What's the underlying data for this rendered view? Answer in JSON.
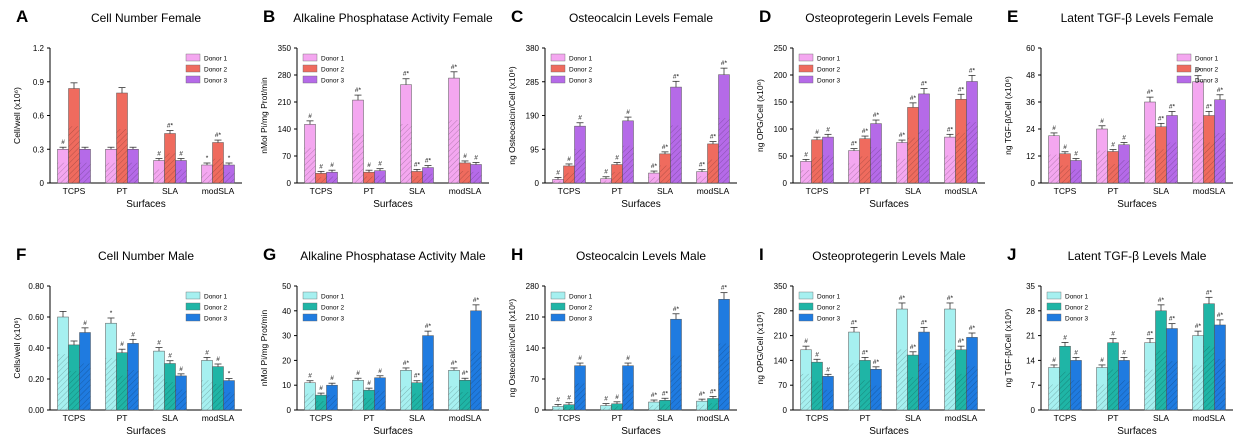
{
  "figure": {
    "panels": [
      {
        "letter": "A",
        "title": "Cell Number Female",
        "ylabel": "Cell/well (x10⁶)",
        "xlabel": "Surfaces",
        "legend": [
          "Donor 1",
          "Donor 2",
          "Donor 3"
        ],
        "colors": [
          "#f4a7f0",
          "#ef6b5e",
          "#b56ae8"
        ]
      },
      {
        "letter": "B",
        "title": "Alkaline Phosphatase Activity Female",
        "ylabel": "nMol Pi/mg Prot/min",
        "xlabel": "Surfaces",
        "legend": [
          "Donor 1",
          "Donor 2",
          "Donor 3"
        ],
        "colors": [
          "#f4a7f0",
          "#ef6b5e",
          "#b56ae8"
        ]
      },
      {
        "letter": "C",
        "title": "Osteocalcin Levels Female",
        "ylabel": "ng Osteocalcin/Cell (x10⁶)",
        "xlabel": "Surfaces",
        "legend": [
          "Donor 1",
          "Donor 2",
          "Donor 3"
        ],
        "colors": [
          "#f4a7f0",
          "#ef6b5e",
          "#b56ae8"
        ]
      },
      {
        "letter": "D",
        "title": "Osteoprotegerin Levels Female",
        "ylabel": "ng OPG/Cell (x10⁶)",
        "xlabel": "Surfaces",
        "legend": [
          "Donor 1",
          "Donor 2",
          "Donor 3"
        ],
        "colors": [
          "#f4a7f0",
          "#ef6b5e",
          "#b56ae8"
        ]
      },
      {
        "letter": "E",
        "title": "Latent TGF-β Levels Female",
        "ylabel": "ng TGF-β/Cell (x10⁶)",
        "xlabel": "Surfaces",
        "legend": [
          "Donor 1",
          "Donor 2",
          "Donor 3"
        ],
        "colors": [
          "#f4a7f0",
          "#ef6b5e",
          "#b56ae8"
        ]
      },
      {
        "letter": "F",
        "title": "Cell Number Male",
        "ylabel": "Cells/well (x10⁶)",
        "xlabel": "Surfaces",
        "legend": [
          "Donor 1",
          "Donor 2",
          "Donor 3"
        ],
        "colors": [
          "#a6f0f0",
          "#1fb5a6",
          "#1f7be0"
        ]
      },
      {
        "letter": "G",
        "title": "Alkaline Phosphatase Activity Male",
        "ylabel": "nMol Pi/mg Prot/min",
        "xlabel": "Surfaces",
        "legend": [
          "Donor 1",
          "Donor 2",
          "Donor 3"
        ],
        "colors": [
          "#a6f0f0",
          "#1fb5a6",
          "#1f7be0"
        ]
      },
      {
        "letter": "H",
        "title": "Osteocalcin Levels Male",
        "ylabel": "ng Osteocalcin/Cell (x10⁶)",
        "xlabel": "Surfaces",
        "legend": [
          "Donor 1",
          "Donor 2",
          "Donor 3"
        ],
        "colors": [
          "#a6f0f0",
          "#1fb5a6",
          "#1f7be0"
        ]
      },
      {
        "letter": "I",
        "title": "Osteoprotegerin Levels Male",
        "ylabel": "ng OPG/Cell (x10⁶)",
        "xlabel": "Surfaces",
        "legend": [
          "Donor 1",
          "Donor 2",
          "Donor 3"
        ],
        "colors": [
          "#a6f0f0",
          "#1fb5a6",
          "#1f7be0"
        ]
      },
      {
        "letter": "J",
        "title": "Latent TGF-β Levels Male",
        "ylabel": "ng TGF-β/Cell (x10⁶)",
        "xlabel": "Surfaces",
        "legend": [
          "Donor 1",
          "Donor 2",
          "Donor 3"
        ],
        "colors": [
          "#a6f0f0",
          "#1fb5a6",
          "#1f7be0"
        ]
      }
    ]
  },
  "chart_data": [
    {
      "type": "bar",
      "title": "Cell Number Female",
      "xlabel": "Surfaces",
      "ylabel": "Cell/well (x10⁶)",
      "categories": [
        "TCPS",
        "PT",
        "SLA",
        "modSLA"
      ],
      "ylim": [
        0,
        1.2
      ],
      "yticks": [
        "0",
        "0.3",
        "0.6",
        "0.9",
        "1.2"
      ],
      "legend_position": "top-right",
      "series": [
        {
          "name": "Donor 1",
          "values": [
            0.3,
            0.3,
            0.2,
            0.16
          ]
        },
        {
          "name": "Donor 2",
          "values": [
            0.84,
            0.8,
            0.44,
            0.36
          ]
        },
        {
          "name": "Donor 3",
          "values": [
            0.3,
            0.3,
            0.2,
            0.16
          ]
        }
      ],
      "annotations": [
        [
          "#",
          "",
          ""
        ],
        [
          "",
          "",
          ""
        ],
        [
          "#",
          "#*",
          "#"
        ],
        [
          "*",
          "#*",
          "*"
        ]
      ]
    },
    {
      "type": "bar",
      "title": "Alkaline Phosphatase Activity Female",
      "xlabel": "Surfaces",
      "ylabel": "nMol Pi/mg Prot/min",
      "categories": [
        "TCPS",
        "PT",
        "SLA",
        "modSLA"
      ],
      "ylim": [
        0,
        350
      ],
      "yticks": [
        "0",
        "70",
        "140",
        "210",
        "280",
        "350"
      ],
      "legend_position": "top-left",
      "series": [
        {
          "name": "Donor 1",
          "values": [
            152,
            215,
            255,
            272
          ]
        },
        {
          "name": "Donor 2",
          "values": [
            25,
            28,
            30,
            52
          ]
        },
        {
          "name": "Donor 3",
          "values": [
            28,
            32,
            40,
            48
          ]
        }
      ],
      "annotations": [
        [
          "#",
          "#",
          "#"
        ],
        [
          "#*",
          "#",
          "#"
        ],
        [
          "#*",
          "#*",
          "#*"
        ],
        [
          "#*",
          "#",
          "#"
        ]
      ]
    },
    {
      "type": "bar",
      "title": "Osteocalcin Levels Female",
      "xlabel": "Surfaces",
      "ylabel": "ng Osteocalcin/Cell (x10⁶)",
      "categories": [
        "TCPS",
        "PT",
        "SLA",
        "modSLA"
      ],
      "ylim": [
        0,
        380
      ],
      "yticks": [
        "0",
        "95",
        "190",
        "285",
        "380"
      ],
      "legend_position": "top-left",
      "series": [
        {
          "name": "Donor 1",
          "values": [
            10,
            12,
            28,
            32
          ]
        },
        {
          "name": "Donor 2",
          "values": [
            48,
            52,
            82,
            110
          ]
        },
        {
          "name": "Donor 3",
          "values": [
            160,
            175,
            270,
            305
          ]
        }
      ],
      "annotations": [
        [
          "#",
          "#",
          "#"
        ],
        [
          "#",
          "#",
          "#"
        ],
        [
          "#*",
          "#*",
          "#*"
        ],
        [
          "#*",
          "#*",
          "#*"
        ]
      ]
    },
    {
      "type": "bar",
      "title": "Osteoprotegerin Levels Female",
      "xlabel": "Surfaces",
      "ylabel": "ng OPG/Cell (x10⁶)",
      "categories": [
        "TCPS",
        "PT",
        "SLA",
        "modSLA"
      ],
      "ylim": [
        0,
        250
      ],
      "yticks": [
        "0",
        "50",
        "100",
        "150",
        "200",
        "250"
      ],
      "legend_position": "top-left",
      "series": [
        {
          "name": "Donor 1",
          "values": [
            40,
            60,
            75,
            85
          ]
        },
        {
          "name": "Donor 2",
          "values": [
            80,
            82,
            140,
            155
          ]
        },
        {
          "name": "Donor 3",
          "values": [
            85,
            110,
            165,
            188
          ]
        }
      ],
      "annotations": [
        [
          "#",
          "#",
          "#"
        ],
        [
          "#*",
          "#*",
          "#*"
        ],
        [
          "#*",
          "#*",
          "#*"
        ],
        [
          "#*",
          "#*",
          "#*"
        ]
      ]
    },
    {
      "type": "bar",
      "title": "Latent TGF-β Levels Female",
      "xlabel": "Surfaces",
      "ylabel": "ng TGF-β/Cell (x10⁶)",
      "categories": [
        "TCPS",
        "PT",
        "SLA",
        "modSLA"
      ],
      "ylim": [
        0,
        60
      ],
      "yticks": [
        "0",
        "12",
        "24",
        "36",
        "48",
        "60"
      ],
      "legend_position": "top-right",
      "series": [
        {
          "name": "Donor 1",
          "values": [
            21,
            24,
            36,
            45
          ]
        },
        {
          "name": "Donor 2",
          "values": [
            13,
            14,
            25,
            30
          ]
        },
        {
          "name": "Donor 3",
          "values": [
            10,
            17,
            30,
            37
          ]
        }
      ],
      "annotations": [
        [
          "#",
          "#",
          "#"
        ],
        [
          "#",
          "#",
          "#"
        ],
        [
          "#*",
          "#*",
          "#*"
        ],
        [
          "#*",
          "#*",
          "#*"
        ]
      ]
    },
    {
      "type": "bar",
      "title": "Cell Number Male",
      "xlabel": "Surfaces",
      "ylabel": "Cells/well (x10⁶)",
      "categories": [
        "TCPS",
        "PT",
        "SLA",
        "modSLA"
      ],
      "ylim": [
        0,
        0.8
      ],
      "yticks": [
        "0.00",
        "0.20",
        "0.40",
        "0.60",
        "0.80"
      ],
      "legend_position": "top-right",
      "series": [
        {
          "name": "Donor 1",
          "values": [
            0.6,
            0.56,
            0.38,
            0.32
          ]
        },
        {
          "name": "Donor 2",
          "values": [
            0.42,
            0.37,
            0.3,
            0.28
          ]
        },
        {
          "name": "Donor 3",
          "values": [
            0.5,
            0.43,
            0.22,
            0.19
          ]
        }
      ],
      "annotations": [
        [
          "",
          "",
          "#"
        ],
        [
          "*",
          "#",
          "#"
        ],
        [
          "#",
          "#",
          "#"
        ],
        [
          "#",
          "#",
          "*"
        ]
      ]
    },
    {
      "type": "bar",
      "title": "Alkaline Phosphatase Activity Male",
      "xlabel": "Surfaces",
      "ylabel": "nMol Pi/mg Prot/min",
      "categories": [
        "TCPS",
        "PT",
        "SLA",
        "modSLA"
      ],
      "ylim": [
        0,
        50
      ],
      "yticks": [
        "0",
        "10",
        "20",
        "30",
        "40",
        "50"
      ],
      "legend_position": "top-left",
      "series": [
        {
          "name": "Donor 1",
          "values": [
            11,
            12,
            16,
            16
          ]
        },
        {
          "name": "Donor 2",
          "values": [
            6,
            8,
            11,
            12
          ]
        },
        {
          "name": "Donor 3",
          "values": [
            10,
            13,
            30,
            40
          ]
        }
      ],
      "annotations": [
        [
          "#",
          "#",
          "#"
        ],
        [
          "#",
          "#",
          "#"
        ],
        [
          "#*",
          "#*",
          "#*"
        ],
        [
          "#*",
          "#*",
          "#*"
        ]
      ]
    },
    {
      "type": "bar",
      "title": "Osteocalcin Levels Male",
      "xlabel": "Surfaces",
      "ylabel": "ng Osteocalcin/Cell (x10⁶)",
      "categories": [
        "TCPS",
        "PT",
        "SLA",
        "modSLA"
      ],
      "ylim": [
        0,
        280
      ],
      "yticks": [
        "0",
        "70",
        "140",
        "210",
        "280"
      ],
      "legend_position": "top-left",
      "series": [
        {
          "name": "Donor 1",
          "values": [
            8,
            10,
            18,
            20
          ]
        },
        {
          "name": "Donor 2",
          "values": [
            12,
            14,
            22,
            26
          ]
        },
        {
          "name": "Donor 3",
          "values": [
            100,
            100,
            205,
            250
          ]
        }
      ],
      "annotations": [
        [
          "#",
          "#",
          "#"
        ],
        [
          "#",
          "#",
          "#"
        ],
        [
          "#*",
          "#*",
          "#*"
        ],
        [
          "#*",
          "#*",
          "#*"
        ]
      ]
    },
    {
      "type": "bar",
      "title": "Osteoprotegerin Levels Male",
      "xlabel": "Surfaces",
      "ylabel": "ng OPG/Cell (x10⁶)",
      "categories": [
        "TCPS",
        "PT",
        "SLA",
        "modSLA"
      ],
      "ylim": [
        0,
        350
      ],
      "yticks": [
        "0",
        "70",
        "140",
        "210",
        "280",
        "350"
      ],
      "legend_position": "top-left",
      "series": [
        {
          "name": "Donor 1",
          "values": [
            170,
            220,
            285,
            285
          ]
        },
        {
          "name": "Donor 2",
          "values": [
            135,
            140,
            155,
            170
          ]
        },
        {
          "name": "Donor 3",
          "values": [
            95,
            115,
            220,
            205
          ]
        }
      ],
      "annotations": [
        [
          "#",
          "#",
          "#"
        ],
        [
          "#*",
          "#*",
          "#*"
        ],
        [
          "#*",
          "#*",
          "#*"
        ],
        [
          "#*",
          "#*",
          "#*"
        ]
      ]
    },
    {
      "type": "bar",
      "title": "Latent TGF-β Levels Male",
      "xlabel": "Surfaces",
      "ylabel": "ng TGF-β/Cell (x10⁶)",
      "categories": [
        "TCPS",
        "PT",
        "SLA",
        "modSLA"
      ],
      "ylim": [
        0,
        35
      ],
      "yticks": [
        "0",
        "7",
        "14",
        "21",
        "28",
        "35"
      ],
      "legend_position": "top-left",
      "series": [
        {
          "name": "Donor 1",
          "values": [
            12,
            12,
            19,
            21
          ]
        },
        {
          "name": "Donor 2",
          "values": [
            18,
            19,
            28,
            30
          ]
        },
        {
          "name": "Donor 3",
          "values": [
            14,
            14,
            23,
            24
          ]
        }
      ],
      "annotations": [
        [
          "#",
          "#",
          "#"
        ],
        [
          "#",
          "#",
          "#"
        ],
        [
          "#*",
          "#*",
          "#*"
        ],
        [
          "#*",
          "#*",
          "#*"
        ]
      ]
    }
  ]
}
